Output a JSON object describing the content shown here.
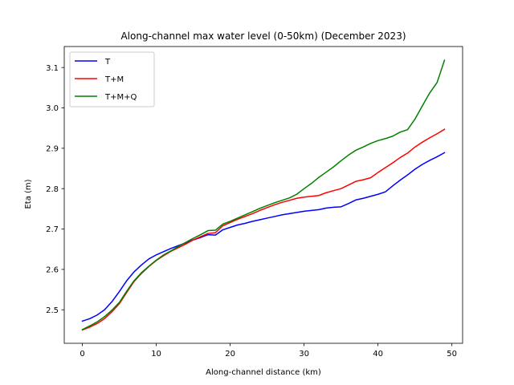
{
  "chart_data": {
    "type": "line",
    "title": "Along-channel max water level (0-50km) (December 2023)",
    "xlabel": "Along-channel distance (km)",
    "ylabel": "Eta (m)",
    "xlim": [
      -2.45,
      51.45
    ],
    "ylim": [
      2.417,
      3.152
    ],
    "xticks": [
      0,
      10,
      20,
      30,
      40,
      50
    ],
    "yticks": [
      2.5,
      2.6,
      2.7,
      2.8,
      2.9,
      3.0,
      3.1
    ],
    "xtick_labels": [
      "0",
      "10",
      "20",
      "30",
      "40",
      "50"
    ],
    "ytick_labels": [
      "2.5",
      "2.6",
      "2.7",
      "2.8",
      "2.9",
      "3.0",
      "3.1"
    ],
    "grid": false,
    "legend_position": "top-left",
    "x": [
      0,
      1,
      2,
      3,
      4,
      5,
      6,
      7,
      8,
      9,
      10,
      11,
      12,
      13,
      14,
      15,
      16,
      17,
      18,
      19,
      20,
      21,
      22,
      23,
      24,
      25,
      26,
      27,
      28,
      29,
      30,
      31,
      32,
      33,
      34,
      35,
      36,
      37,
      38,
      39,
      40,
      41,
      42,
      43,
      44,
      45,
      46,
      47,
      48,
      49
    ],
    "series": [
      {
        "name": "T",
        "color": "#0000ff",
        "values": [
          2.472,
          2.478,
          2.487,
          2.5,
          2.52,
          2.545,
          2.572,
          2.594,
          2.611,
          2.626,
          2.636,
          2.644,
          2.652,
          2.659,
          2.666,
          2.673,
          2.679,
          2.686,
          2.685,
          2.698,
          2.704,
          2.71,
          2.714,
          2.719,
          2.723,
          2.727,
          2.731,
          2.735,
          2.738,
          2.741,
          2.744,
          2.746,
          2.748,
          2.752,
          2.754,
          2.755,
          2.763,
          2.772,
          2.776,
          2.781,
          2.786,
          2.792,
          2.807,
          2.821,
          2.834,
          2.848,
          2.86,
          2.87,
          2.879,
          2.889
        ]
      },
      {
        "name": "T+M",
        "color": "#ff0000",
        "values": [
          2.45,
          2.457,
          2.466,
          2.478,
          2.495,
          2.515,
          2.543,
          2.57,
          2.59,
          2.607,
          2.622,
          2.634,
          2.645,
          2.654,
          2.663,
          2.673,
          2.681,
          2.689,
          2.691,
          2.708,
          2.716,
          2.724,
          2.731,
          2.738,
          2.746,
          2.753,
          2.76,
          2.766,
          2.771,
          2.776,
          2.779,
          2.781,
          2.783,
          2.79,
          2.795,
          2.8,
          2.809,
          2.818,
          2.822,
          2.827,
          2.84,
          2.852,
          2.864,
          2.877,
          2.888,
          2.903,
          2.915,
          2.926,
          2.936,
          2.947
        ]
      },
      {
        "name": "T+M+Q",
        "color": "#008000",
        "values": [
          2.451,
          2.46,
          2.47,
          2.483,
          2.499,
          2.518,
          2.546,
          2.572,
          2.592,
          2.608,
          2.623,
          2.636,
          2.646,
          2.657,
          2.667,
          2.677,
          2.686,
          2.696,
          2.697,
          2.712,
          2.719,
          2.727,
          2.735,
          2.743,
          2.751,
          2.758,
          2.765,
          2.771,
          2.777,
          2.786,
          2.8,
          2.813,
          2.828,
          2.841,
          2.854,
          2.869,
          2.883,
          2.895,
          2.903,
          2.912,
          2.919,
          2.924,
          2.93,
          2.94,
          2.946,
          2.972,
          3.005,
          3.037,
          3.063,
          3.118
        ]
      }
    ]
  }
}
